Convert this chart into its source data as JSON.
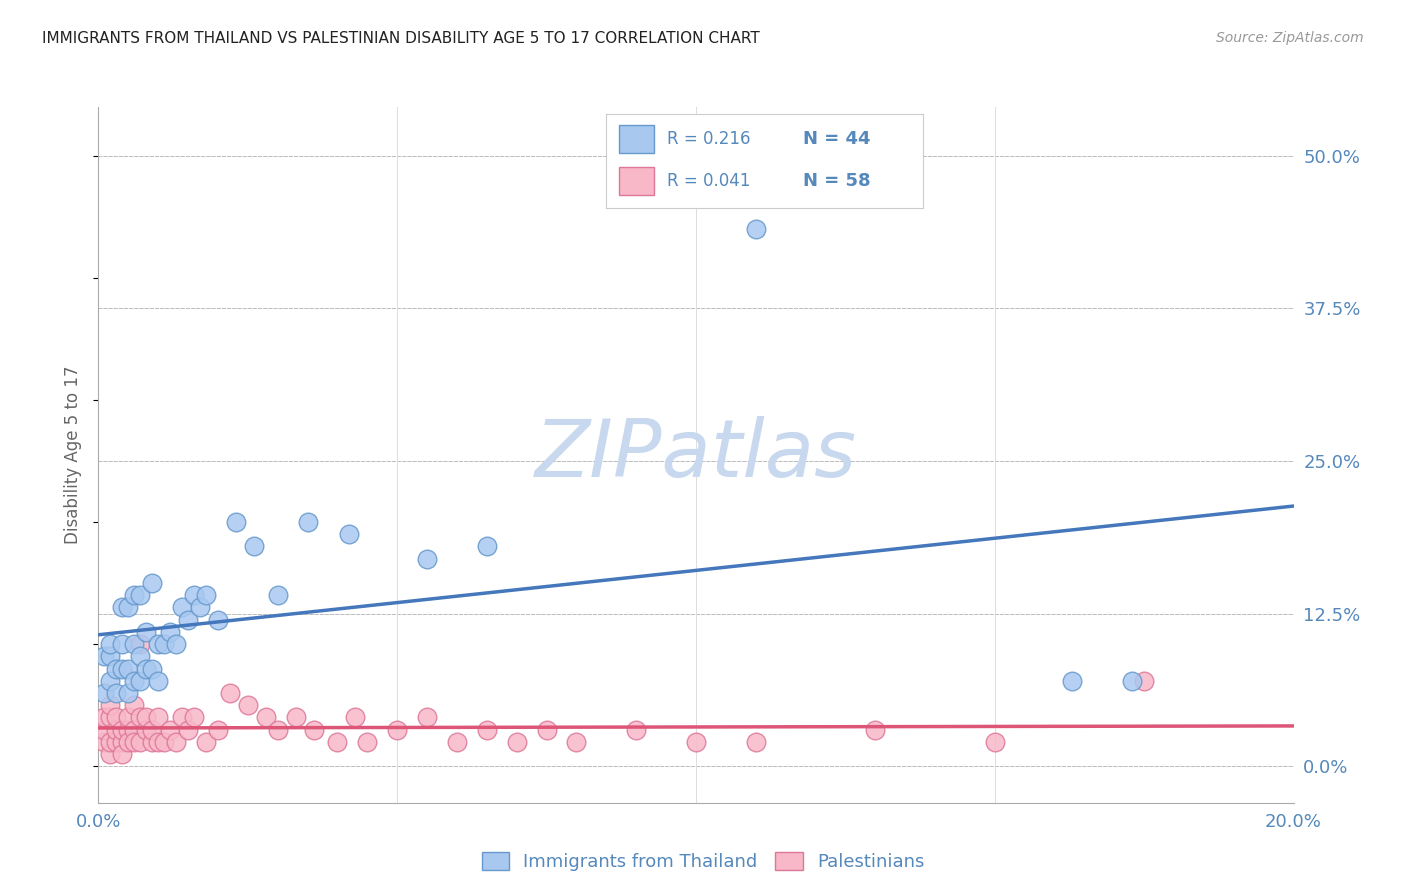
{
  "title": "IMMIGRANTS FROM THAILAND VS PALESTINIAN DISABILITY AGE 5 TO 17 CORRELATION CHART",
  "source": "Source: ZipAtlas.com",
  "ylabel_label": "Disability Age 5 to 17",
  "xlim": [
    0.0,
    0.2
  ],
  "ylim": [
    -0.03,
    0.54
  ],
  "y_ticks_right": [
    0.0,
    0.125,
    0.25,
    0.375,
    0.5
  ],
  "y_tick_labels_right": [
    "0.0%",
    "12.5%",
    "25.0%",
    "37.5%",
    "50.0%"
  ],
  "x_ticks": [
    0.0,
    0.05,
    0.1,
    0.15,
    0.2
  ],
  "x_tick_labels": [
    "0.0%",
    "",
    "",
    "",
    "20.0%"
  ],
  "legend_r1": "0.216",
  "legend_n1": "44",
  "legend_r2": "0.041",
  "legend_n2": "58",
  "blue_scatter_color": "#A8C8F0",
  "blue_edge_color": "#6699CC",
  "blue_line_color": "#4477BB",
  "pink_scatter_color": "#F8B8C8",
  "pink_edge_color": "#DD7799",
  "pink_line_color": "#DD5577",
  "background_color": "#FFFFFF",
  "watermark_text": "ZIPatlas",
  "watermark_color": "#C8D8EE",
  "grid_color": "#BBBBBB",
  "title_color": "#222222",
  "axis_color": "#5588BB",
  "thailand_x": [
    0.001,
    0.001,
    0.002,
    0.002,
    0.002,
    0.003,
    0.003,
    0.004,
    0.004,
    0.004,
    0.005,
    0.005,
    0.005,
    0.006,
    0.006,
    0.006,
    0.007,
    0.007,
    0.007,
    0.008,
    0.008,
    0.009,
    0.009,
    0.01,
    0.01,
    0.011,
    0.012,
    0.013,
    0.014,
    0.015,
    0.016,
    0.017,
    0.018,
    0.02,
    0.023,
    0.026,
    0.03,
    0.035,
    0.042,
    0.055,
    0.065,
    0.11,
    0.163,
    0.173
  ],
  "thailand_y": [
    0.06,
    0.09,
    0.07,
    0.09,
    0.1,
    0.06,
    0.08,
    0.08,
    0.1,
    0.13,
    0.06,
    0.08,
    0.13,
    0.07,
    0.1,
    0.14,
    0.07,
    0.09,
    0.14,
    0.08,
    0.11,
    0.08,
    0.15,
    0.07,
    0.1,
    0.1,
    0.11,
    0.1,
    0.13,
    0.12,
    0.14,
    0.13,
    0.14,
    0.12,
    0.2,
    0.18,
    0.14,
    0.2,
    0.19,
    0.17,
    0.18,
    0.44,
    0.07,
    0.07
  ],
  "palestinian_x": [
    0.001,
    0.001,
    0.001,
    0.002,
    0.002,
    0.002,
    0.002,
    0.003,
    0.003,
    0.003,
    0.004,
    0.004,
    0.004,
    0.005,
    0.005,
    0.005,
    0.006,
    0.006,
    0.006,
    0.007,
    0.007,
    0.007,
    0.008,
    0.008,
    0.009,
    0.009,
    0.01,
    0.01,
    0.011,
    0.012,
    0.013,
    0.014,
    0.015,
    0.016,
    0.018,
    0.02,
    0.022,
    0.025,
    0.028,
    0.03,
    0.033,
    0.036,
    0.04,
    0.043,
    0.045,
    0.05,
    0.055,
    0.06,
    0.065,
    0.07,
    0.075,
    0.08,
    0.09,
    0.1,
    0.11,
    0.13,
    0.15,
    0.175
  ],
  "palestinian_y": [
    0.02,
    0.03,
    0.04,
    0.01,
    0.02,
    0.04,
    0.05,
    0.02,
    0.03,
    0.04,
    0.02,
    0.03,
    0.01,
    0.03,
    0.04,
    0.02,
    0.03,
    0.05,
    0.02,
    0.04,
    0.02,
    0.1,
    0.03,
    0.04,
    0.02,
    0.03,
    0.02,
    0.04,
    0.02,
    0.03,
    0.02,
    0.04,
    0.03,
    0.04,
    0.02,
    0.03,
    0.06,
    0.05,
    0.04,
    0.03,
    0.04,
    0.03,
    0.02,
    0.04,
    0.02,
    0.03,
    0.04,
    0.02,
    0.03,
    0.02,
    0.03,
    0.02,
    0.03,
    0.02,
    0.02,
    0.03,
    0.02,
    0.07
  ]
}
